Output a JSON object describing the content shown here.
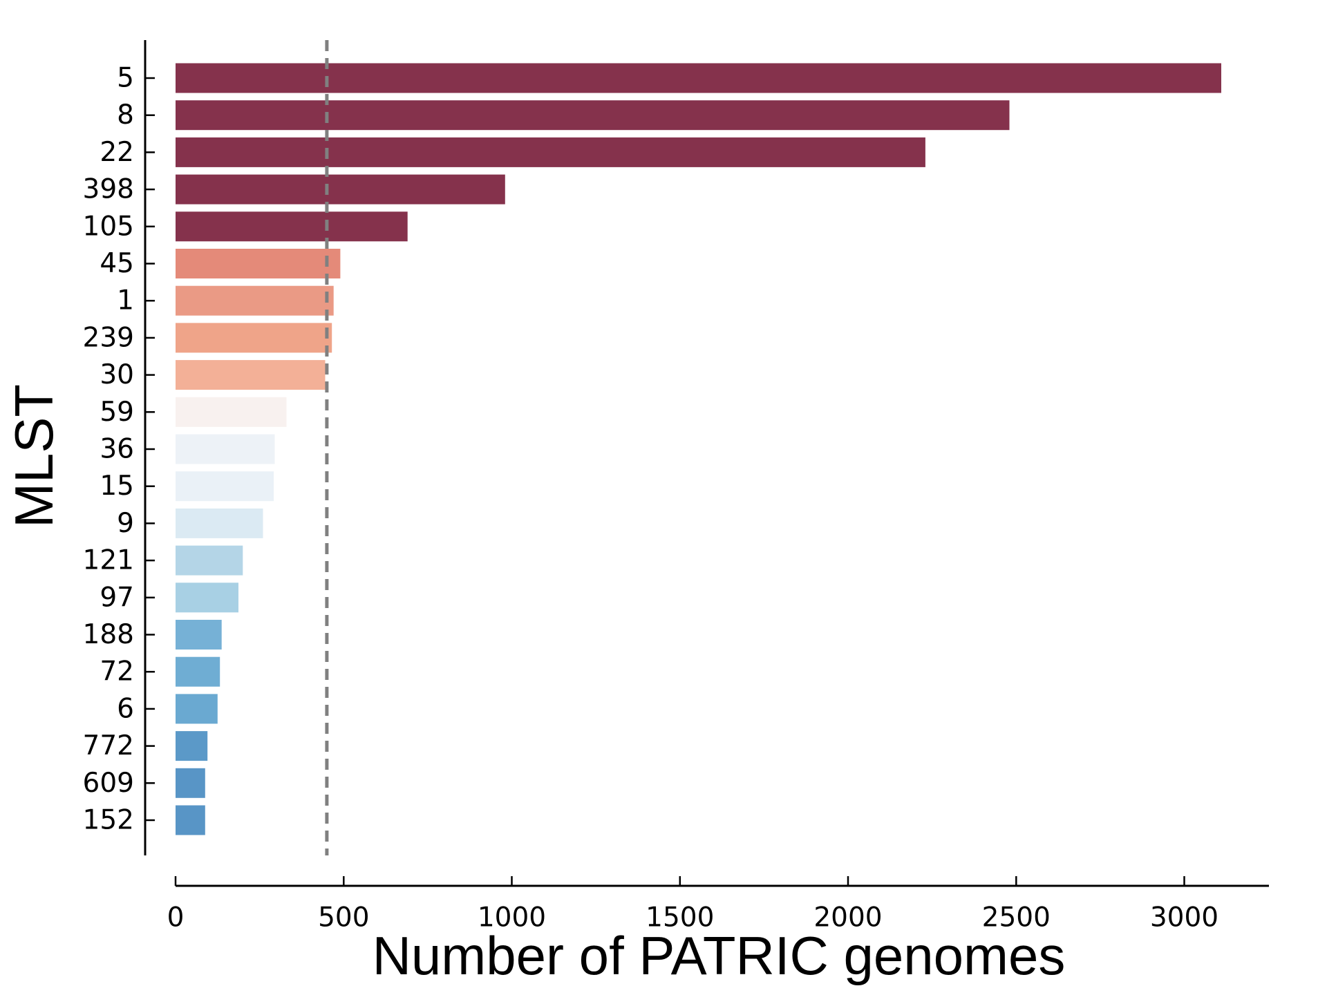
{
  "chart_data": {
    "type": "bar",
    "orientation": "horizontal",
    "title": "",
    "xlabel": "Number of PATRIC genomes",
    "ylabel": "MLST",
    "xlim": [
      0,
      3270
    ],
    "xticks": [
      0,
      500,
      1000,
      1500,
      2000,
      2500,
      3000
    ],
    "grid": false,
    "legend": "none",
    "reference_line": {
      "x": 450,
      "style": "dashed",
      "color": "#808080"
    },
    "categories": [
      "5",
      "8",
      "22",
      "398",
      "105",
      "45",
      "1",
      "239",
      "30",
      "59",
      "36",
      "15",
      "9",
      "121",
      "97",
      "188",
      "72",
      "6",
      "772",
      "609",
      "152"
    ],
    "values": [
      3110,
      2480,
      2230,
      980,
      690,
      490,
      470,
      465,
      445,
      330,
      295,
      292,
      260,
      200,
      187,
      137,
      132,
      125,
      95,
      88,
      88
    ],
    "colors": [
      "#85324c",
      "#85324c",
      "#85324c",
      "#85324c",
      "#85324c",
      "#e48a79",
      "#ea9a85",
      "#efa489",
      "#f3b097",
      "#f8f1ef",
      "#edf2f7",
      "#eaf1f7",
      "#dbeaf3",
      "#b4d5e7",
      "#a8d0e4",
      "#76b1d6",
      "#6fadd3",
      "#6aa9d1",
      "#5b99c8",
      "#5895c6",
      "#5895c6"
    ]
  }
}
